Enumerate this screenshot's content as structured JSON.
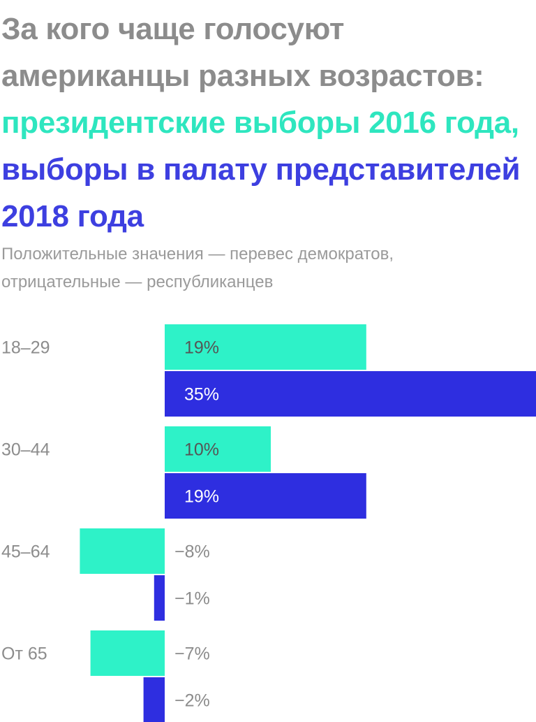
{
  "colors": {
    "title_gray": "#8c8c8c",
    "title_green": "#2ee6bf",
    "title_blue": "#3d3fe0",
    "subtitle_gray": "#9a9a9a",
    "bar_green": "#2ef2c8",
    "bar_blue": "#2e2ee0",
    "label_gray": "#8c8c8c",
    "label_dark": "#555555",
    "label_white": "#ffffff"
  },
  "header": {
    "title_line1": "За кого чаще голосуют",
    "title_line2": "американцы разных возрастов:",
    "title_line3": "президентские выборы 2016 года,",
    "title_line4": "выборы в палату представителей",
    "title_line5": "2018 года",
    "subtitle_line1": "Положительные значения — перевес демократов,",
    "subtitle_line2": "отрицательные — республиканцев"
  },
  "chart_data": {
    "type": "bar",
    "orientation": "horizontal",
    "categories": [
      "18–29",
      "30–44",
      "45–64",
      "От 65"
    ],
    "series": [
      {
        "values": [
          19,
          10,
          -8,
          -7
        ],
        "labels": [
          "19%",
          "10%",
          "−8%",
          "−7%"
        ]
      },
      {
        "values": [
          35,
          19,
          -1,
          -2
        ],
        "labels": [
          "35%",
          "19%",
          "−1%",
          "−2%"
        ]
      }
    ],
    "xlim": [
      -8,
      35
    ],
    "grid": false
  }
}
